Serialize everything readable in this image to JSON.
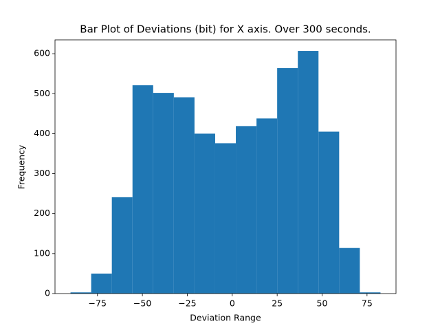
{
  "chart_data": {
    "type": "histogram",
    "title": "Bar Plot of Deviations (bit) for X axis. Over 300 seconds.",
    "x_label": "Deviation Range",
    "y_label": "Frequency",
    "bins": [
      -90,
      -78.5,
      -67,
      -55.5,
      -44,
      -32.5,
      -21,
      -9.5,
      2,
      13.5,
      25,
      36.5,
      48,
      59.5,
      71,
      82.5
    ],
    "values": [
      3,
      50,
      241,
      521,
      502,
      491,
      400,
      376,
      419,
      438,
      564,
      607,
      405,
      114,
      3
    ],
    "color": "#1f77b4",
    "xlim": [
      -98.625,
      91.125
    ],
    "xticks": [
      {
        "value": -75,
        "label": "−75"
      },
      {
        "value": -50,
        "label": "−50"
      },
      {
        "value": -25,
        "label": "−25"
      },
      0,
      25,
      50,
      75
    ],
    "ylim": [
      0,
      634.6
    ],
    "yticks": [
      0,
      100,
      200,
      300,
      400,
      500,
      600
    ]
  }
}
